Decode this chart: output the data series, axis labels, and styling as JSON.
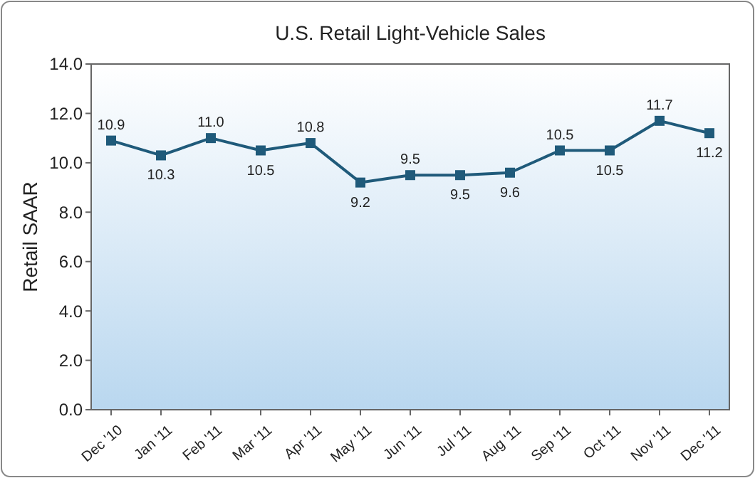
{
  "chart_data": {
    "type": "line",
    "title": "U.S. Retail Light-Vehicle Sales",
    "ylabel": "Retail SAAR",
    "categories": [
      "Dec '10",
      "Jan '11",
      "Feb '11",
      "Mar '11",
      "Apr '11",
      "May '11",
      "Jun '11",
      "Jul '11",
      "Aug '11",
      "Sep '11",
      "Oct '11",
      "Nov '11",
      "Dec '11"
    ],
    "series": [
      {
        "color": "#1f5a7a",
        "values": [
          10.9,
          10.3,
          11.0,
          10.5,
          10.8,
          9.2,
          9.5,
          9.5,
          9.6,
          10.5,
          10.5,
          11.7,
          11.2
        ]
      }
    ],
    "ylim": [
      0,
      14
    ],
    "yticks": [
      {
        "value": 0,
        "label": "0.0"
      },
      {
        "value": 2,
        "label": "2.0"
      },
      {
        "value": 4,
        "label": "4.0"
      },
      {
        "value": 6,
        "label": "6.0"
      },
      {
        "value": 8,
        "label": "8.0"
      },
      {
        "value": 10,
        "label": "10.0"
      },
      {
        "value": 12,
        "label": "12.0"
      },
      {
        "value": 14,
        "label": "14.0"
      }
    ],
    "value_labels": [
      "10.9",
      "10.3",
      "11.0",
      "10.5",
      "10.8",
      "9.2",
      "9.5",
      "9.5",
      "9.6",
      "10.5",
      "10.5",
      "11.7",
      "11.2"
    ],
    "marker": "square",
    "line_style": "solid"
  }
}
